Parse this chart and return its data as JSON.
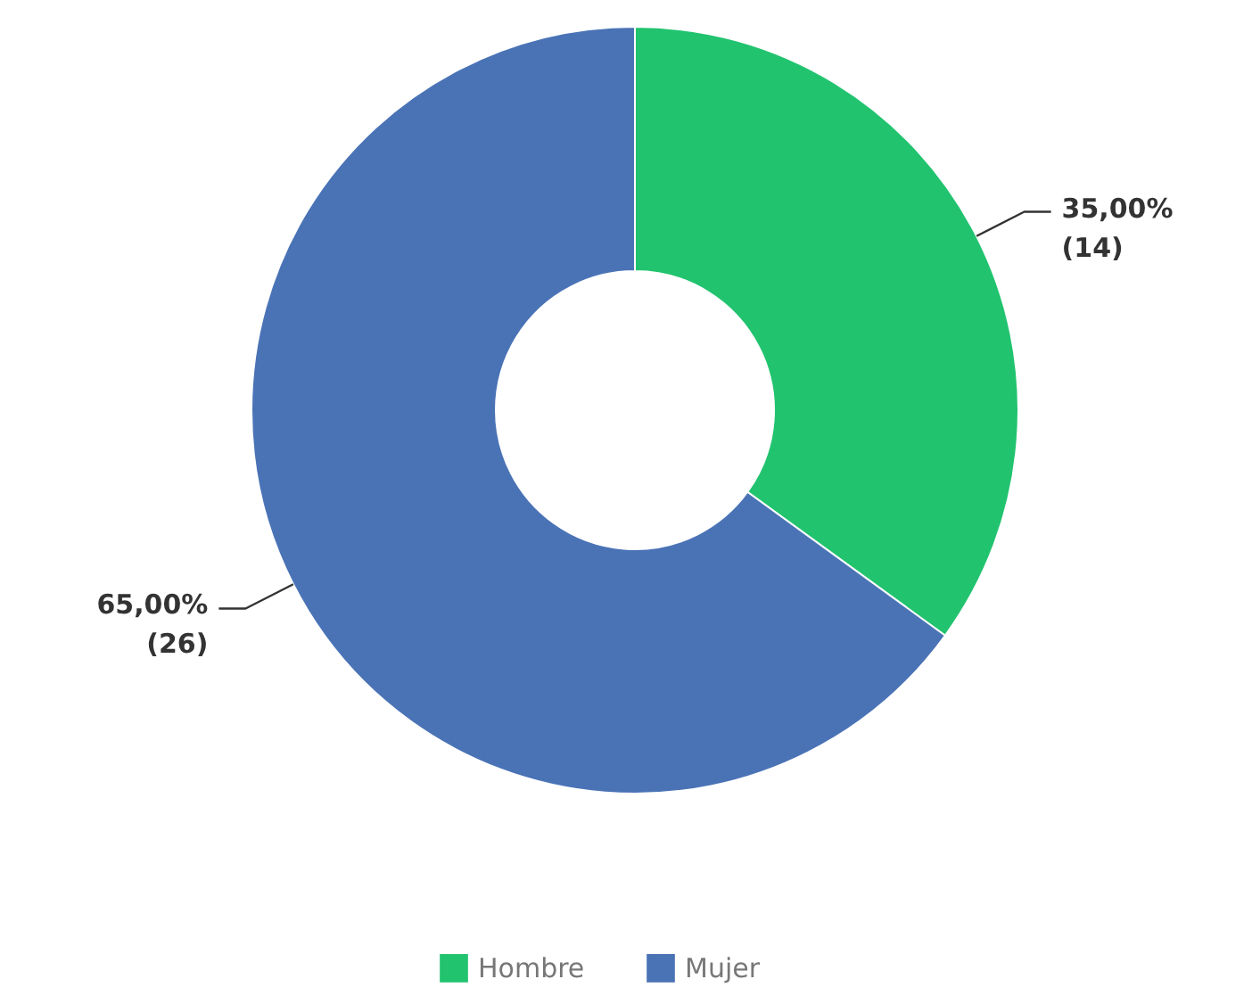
{
  "chart_data": {
    "type": "donut",
    "categories": [
      "Hombre",
      "Mujer"
    ],
    "values": [
      14,
      26
    ],
    "colors": [
      "#21c36f",
      "#4a73b6"
    ],
    "value_labels": [
      "35,00%\n(14)",
      "65,00%\n(26)"
    ],
    "legend": "bottom"
  }
}
